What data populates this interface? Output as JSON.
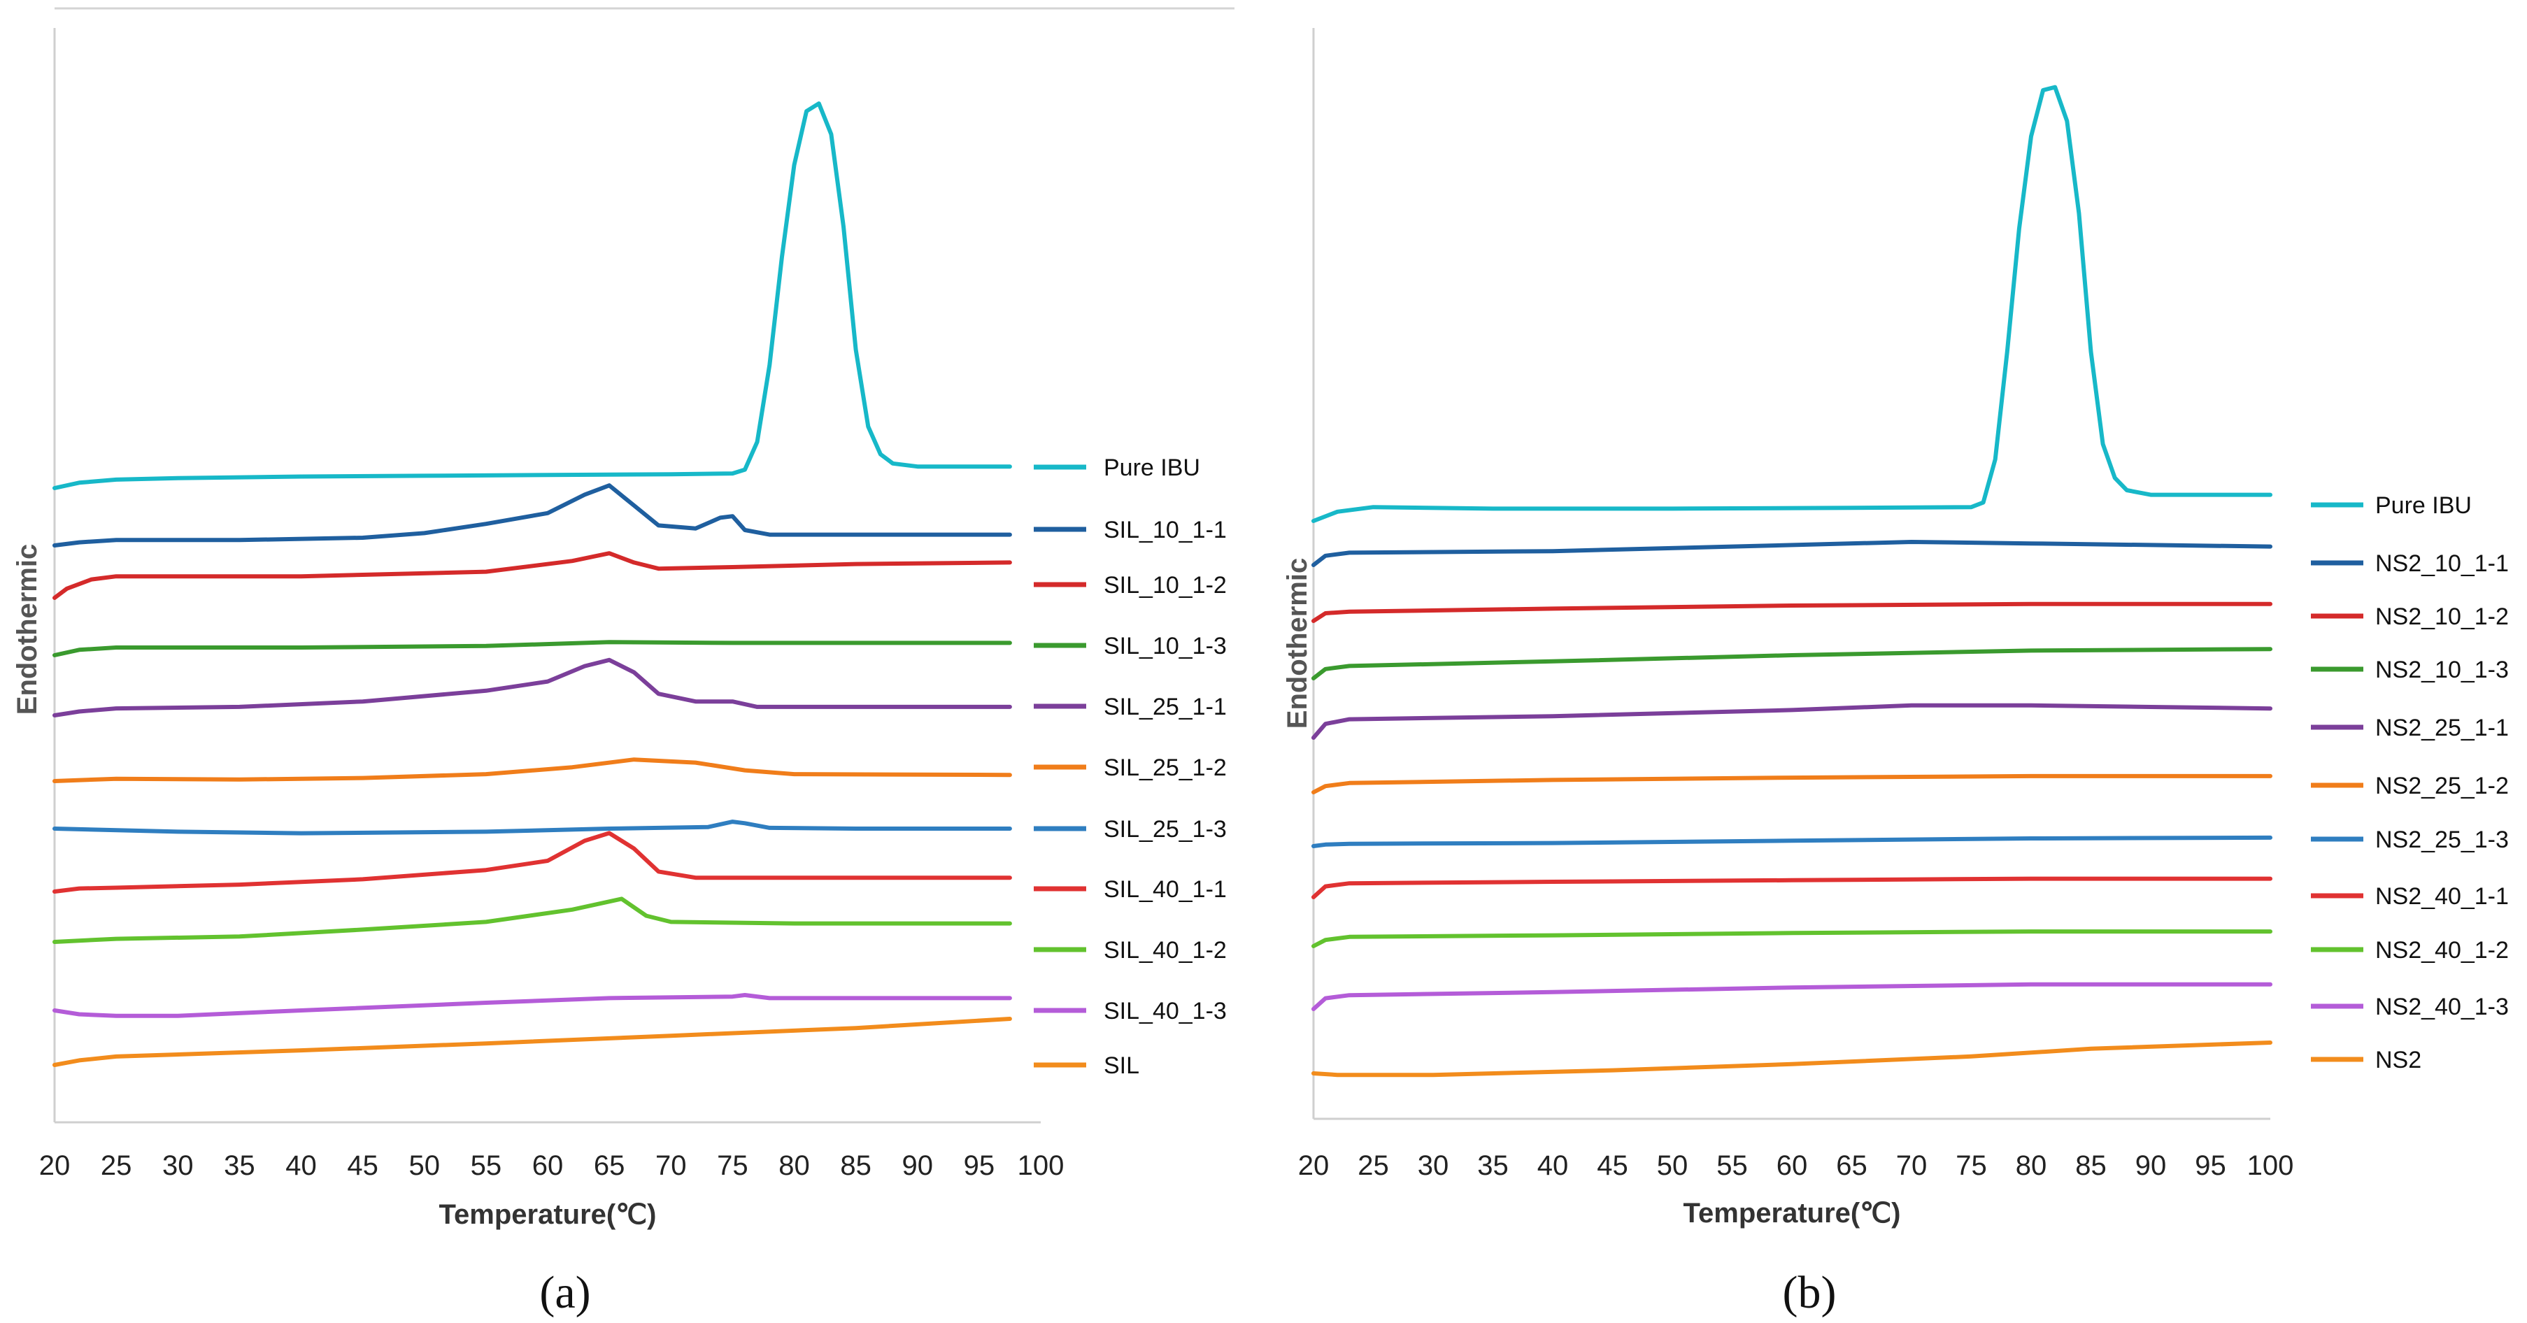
{
  "chart_data": [
    {
      "type": "line",
      "panel_label": "a",
      "xlabel": "Temperature(℃)",
      "ylabel": "Endothermic",
      "xlim": [
        20,
        100
      ],
      "x_ticks": [
        "20",
        "25",
        "30",
        "35",
        "40",
        "45",
        "50",
        "55",
        "60",
        "65",
        "70",
        "75",
        "80",
        "85",
        "90",
        "95",
        "100"
      ],
      "legend_position": "right",
      "series": [
        {
          "name": "Pure IBU",
          "color": "#17b8c8",
          "points": [
            [
              20,
              0
            ],
            [
              22,
              0.35
            ],
            [
              25,
              0.55
            ],
            [
              30,
              0.65
            ],
            [
              40,
              0.75
            ],
            [
              50,
              0.8
            ],
            [
              60,
              0.85
            ],
            [
              70,
              0.9
            ],
            [
              75,
              0.95
            ],
            [
              76,
              1.2
            ],
            [
              77,
              3
            ],
            [
              78,
              8
            ],
            [
              79,
              15
            ],
            [
              80,
              21
            ],
            [
              81,
              24.5
            ],
            [
              82,
              25
            ],
            [
              83,
              23
            ],
            [
              84,
              17
            ],
            [
              85,
              9
            ],
            [
              86,
              4
            ],
            [
              87,
              2.2
            ],
            [
              88,
              1.6
            ],
            [
              90,
              1.4
            ],
            [
              95,
              1.4
            ],
            [
              97.5,
              1.4
            ]
          ]
        },
        {
          "name": "SIL_10_1-1",
          "color": "#1f5f9f",
          "points": [
            [
              20,
              0
            ],
            [
              22,
              0.2
            ],
            [
              25,
              0.35
            ],
            [
              35,
              0.35
            ],
            [
              45,
              0.5
            ],
            [
              50,
              0.8
            ],
            [
              55,
              1.4
            ],
            [
              60,
              2.1
            ],
            [
              63,
              3.3
            ],
            [
              65,
              3.9
            ],
            [
              67,
              2.6
            ],
            [
              69,
              1.3
            ],
            [
              72,
              1.1
            ],
            [
              74,
              1.8
            ],
            [
              75,
              1.9
            ],
            [
              76,
              1
            ],
            [
              78,
              0.7
            ],
            [
              85,
              0.7
            ],
            [
              97.5,
              0.7
            ]
          ]
        },
        {
          "name": "SIL_10_1-2",
          "color": "#d42a2a",
          "points": [
            [
              20,
              0
            ],
            [
              21,
              0.6
            ],
            [
              23,
              1.2
            ],
            [
              25,
              1.4
            ],
            [
              40,
              1.4
            ],
            [
              55,
              1.7
            ],
            [
              62,
              2.4
            ],
            [
              65,
              2.9
            ],
            [
              67,
              2.3
            ],
            [
              69,
              1.9
            ],
            [
              75,
              2
            ],
            [
              85,
              2.2
            ],
            [
              97.5,
              2.3
            ]
          ]
        },
        {
          "name": "SIL_10_1-3",
          "color": "#3a9a2e",
          "points": [
            [
              20,
              0
            ],
            [
              22,
              0.35
            ],
            [
              25,
              0.5
            ],
            [
              40,
              0.5
            ],
            [
              55,
              0.6
            ],
            [
              65,
              0.85
            ],
            [
              75,
              0.8
            ],
            [
              97.5,
              0.8
            ]
          ]
        },
        {
          "name": "SIL_25_1-1",
          "color": "#7b3f9a",
          "points": [
            [
              20,
              0
            ],
            [
              22,
              0.25
            ],
            [
              25,
              0.45
            ],
            [
              35,
              0.55
            ],
            [
              45,
              0.9
            ],
            [
              55,
              1.6
            ],
            [
              60,
              2.2
            ],
            [
              63,
              3.2
            ],
            [
              65,
              3.6
            ],
            [
              67,
              2.8
            ],
            [
              69,
              1.4
            ],
            [
              72,
              0.9
            ],
            [
              75,
              0.9
            ],
            [
              77,
              0.55
            ],
            [
              85,
              0.55
            ],
            [
              97.5,
              0.55
            ]
          ]
        },
        {
          "name": "SIL_25_1-2",
          "color": "#f07d1a",
          "points": [
            [
              20,
              0
            ],
            [
              25,
              0.15
            ],
            [
              35,
              0.1
            ],
            [
              45,
              0.2
            ],
            [
              55,
              0.45
            ],
            [
              62,
              0.9
            ],
            [
              67,
              1.4
            ],
            [
              72,
              1.2
            ],
            [
              76,
              0.7
            ],
            [
              80,
              0.45
            ],
            [
              97.5,
              0.4
            ]
          ]
        },
        {
          "name": "SIL_25_1-3",
          "color": "#2f7ec0",
          "points": [
            [
              20,
              0
            ],
            [
              30,
              -0.2
            ],
            [
              40,
              -0.3
            ],
            [
              55,
              -0.2
            ],
            [
              65,
              0
            ],
            [
              73,
              0.1
            ],
            [
              75,
              0.45
            ],
            [
              76,
              0.35
            ],
            [
              78,
              0.05
            ],
            [
              85,
              0
            ],
            [
              97.5,
              0
            ]
          ]
        },
        {
          "name": "SIL_40_1-1",
          "color": "#e03232",
          "points": [
            [
              20,
              0
            ],
            [
              22,
              0.2
            ],
            [
              25,
              0.25
            ],
            [
              35,
              0.45
            ],
            [
              45,
              0.8
            ],
            [
              55,
              1.4
            ],
            [
              60,
              2
            ],
            [
              63,
              3.3
            ],
            [
              65,
              3.8
            ],
            [
              67,
              2.8
            ],
            [
              69,
              1.3
            ],
            [
              72,
              0.9
            ],
            [
              80,
              0.9
            ],
            [
              97.5,
              0.9
            ]
          ]
        },
        {
          "name": "SIL_40_1-2",
          "color": "#62c22e",
          "points": [
            [
              20,
              0
            ],
            [
              25,
              0.2
            ],
            [
              35,
              0.35
            ],
            [
              45,
              0.8
            ],
            [
              55,
              1.3
            ],
            [
              62,
              2.1
            ],
            [
              66,
              2.8
            ],
            [
              68,
              1.7
            ],
            [
              70,
              1.3
            ],
            [
              80,
              1.2
            ],
            [
              97.5,
              1.2
            ]
          ]
        },
        {
          "name": "SIL_40_1-3",
          "color": "#b45cd8",
          "points": [
            [
              20,
              0
            ],
            [
              22,
              -0.25
            ],
            [
              25,
              -0.35
            ],
            [
              30,
              -0.35
            ],
            [
              40,
              0
            ],
            [
              55,
              0.5
            ],
            [
              65,
              0.8
            ],
            [
              75,
              0.9
            ],
            [
              76,
              1
            ],
            [
              78,
              0.8
            ],
            [
              85,
              0.8
            ],
            [
              97.5,
              0.8
            ]
          ]
        },
        {
          "name": "SIL",
          "color": "#f28c1c",
          "points": [
            [
              20,
              0
            ],
            [
              22,
              0.3
            ],
            [
              25,
              0.55
            ],
            [
              40,
              0.95
            ],
            [
              55,
              1.4
            ],
            [
              70,
              1.9
            ],
            [
              85,
              2.4
            ],
            [
              97.5,
              3
            ]
          ]
        }
      ],
      "caption": "(a)"
    },
    {
      "type": "line",
      "panel_label": "b",
      "xlabel": "Temperature(℃)",
      "ylabel": "Endothermic",
      "xlim": [
        20,
        100
      ],
      "x_ticks": [
        "20",
        "25",
        "30",
        "35",
        "40",
        "45",
        "50",
        "55",
        "60",
        "65",
        "70",
        "75",
        "80",
        "85",
        "90",
        "95",
        "100"
      ],
      "legend_position": "right",
      "series": [
        {
          "name": "Pure IBU",
          "color": "#17b8c8",
          "points": [
            [
              20,
              0
            ],
            [
              22,
              0.6
            ],
            [
              25,
              0.9
            ],
            [
              35,
              0.8
            ],
            [
              50,
              0.8
            ],
            [
              65,
              0.85
            ],
            [
              75,
              0.9
            ],
            [
              76,
              1.2
            ],
            [
              77,
              4
            ],
            [
              78,
              11
            ],
            [
              79,
              19
            ],
            [
              80,
              25
            ],
            [
              81,
              28
            ],
            [
              82,
              28.2
            ],
            [
              83,
              26
            ],
            [
              84,
              20
            ],
            [
              85,
              11
            ],
            [
              86,
              5
            ],
            [
              87,
              2.8
            ],
            [
              88,
              2
            ],
            [
              90,
              1.7
            ],
            [
              95,
              1.7
            ],
            [
              100,
              1.7
            ]
          ]
        },
        {
          "name": "NS2_10_1-1",
          "color": "#1f5f9f",
          "points": [
            [
              20,
              0
            ],
            [
              21,
              0.6
            ],
            [
              23,
              0.8
            ],
            [
              40,
              0.9
            ],
            [
              55,
              1.2
            ],
            [
              70,
              1.5
            ],
            [
              80,
              1.4
            ],
            [
              100,
              1.2
            ]
          ]
        },
        {
          "name": "NS2_10_1-2",
          "color": "#d42a2a",
          "points": [
            [
              20,
              0
            ],
            [
              21,
              0.5
            ],
            [
              23,
              0.6
            ],
            [
              40,
              0.8
            ],
            [
              60,
              1
            ],
            [
              80,
              1.1
            ],
            [
              100,
              1.1
            ]
          ]
        },
        {
          "name": "NS2_10_1-3",
          "color": "#3a9a2e",
          "points": [
            [
              20,
              0
            ],
            [
              21,
              0.6
            ],
            [
              23,
              0.8
            ],
            [
              40,
              1.1
            ],
            [
              60,
              1.5
            ],
            [
              80,
              1.8
            ],
            [
              100,
              1.9
            ]
          ]
        },
        {
          "name": "NS2_25_1-1",
          "color": "#7b3f9a",
          "points": [
            [
              20,
              0
            ],
            [
              21,
              0.9
            ],
            [
              23,
              1.2
            ],
            [
              40,
              1.4
            ],
            [
              60,
              1.8
            ],
            [
              70,
              2.1
            ],
            [
              80,
              2.1
            ],
            [
              90,
              2
            ],
            [
              100,
              1.9
            ]
          ]
        },
        {
          "name": "NS2_25_1-2",
          "color": "#f07d1a",
          "points": [
            [
              20,
              0
            ],
            [
              21,
              0.4
            ],
            [
              23,
              0.6
            ],
            [
              40,
              0.8
            ],
            [
              60,
              0.95
            ],
            [
              80,
              1.05
            ],
            [
              100,
              1.05
            ]
          ]
        },
        {
          "name": "NS2_25_1-3",
          "color": "#2f7ec0",
          "points": [
            [
              20,
              0
            ],
            [
              21,
              0.1
            ],
            [
              23,
              0.15
            ],
            [
              40,
              0.2
            ],
            [
              60,
              0.35
            ],
            [
              80,
              0.5
            ],
            [
              100,
              0.55
            ]
          ]
        },
        {
          "name": "NS2_40_1-1",
          "color": "#e03232",
          "points": [
            [
              20,
              0
            ],
            [
              21,
              0.7
            ],
            [
              23,
              0.9
            ],
            [
              40,
              1
            ],
            [
              60,
              1.1
            ],
            [
              80,
              1.2
            ],
            [
              100,
              1.2
            ]
          ]
        },
        {
          "name": "NS2_40_1-2",
          "color": "#62c22e",
          "points": [
            [
              20,
              0
            ],
            [
              21,
              0.4
            ],
            [
              23,
              0.6
            ],
            [
              40,
              0.7
            ],
            [
              60,
              0.85
            ],
            [
              80,
              0.95
            ],
            [
              100,
              0.95
            ]
          ]
        },
        {
          "name": "NS2_40_1-3",
          "color": "#b45cd8",
          "points": [
            [
              20,
              0
            ],
            [
              21,
              0.7
            ],
            [
              23,
              0.9
            ],
            [
              40,
              1.1
            ],
            [
              60,
              1.4
            ],
            [
              80,
              1.6
            ],
            [
              100,
              1.6
            ]
          ]
        },
        {
          "name": "NS2",
          "color": "#f28c1c",
          "points": [
            [
              20,
              0
            ],
            [
              22,
              -0.1
            ],
            [
              30,
              -0.1
            ],
            [
              45,
              0.2
            ],
            [
              60,
              0.6
            ],
            [
              75,
              1.1
            ],
            [
              85,
              1.6
            ],
            [
              100,
              2
            ]
          ]
        }
      ],
      "caption": "(b)"
    }
  ]
}
